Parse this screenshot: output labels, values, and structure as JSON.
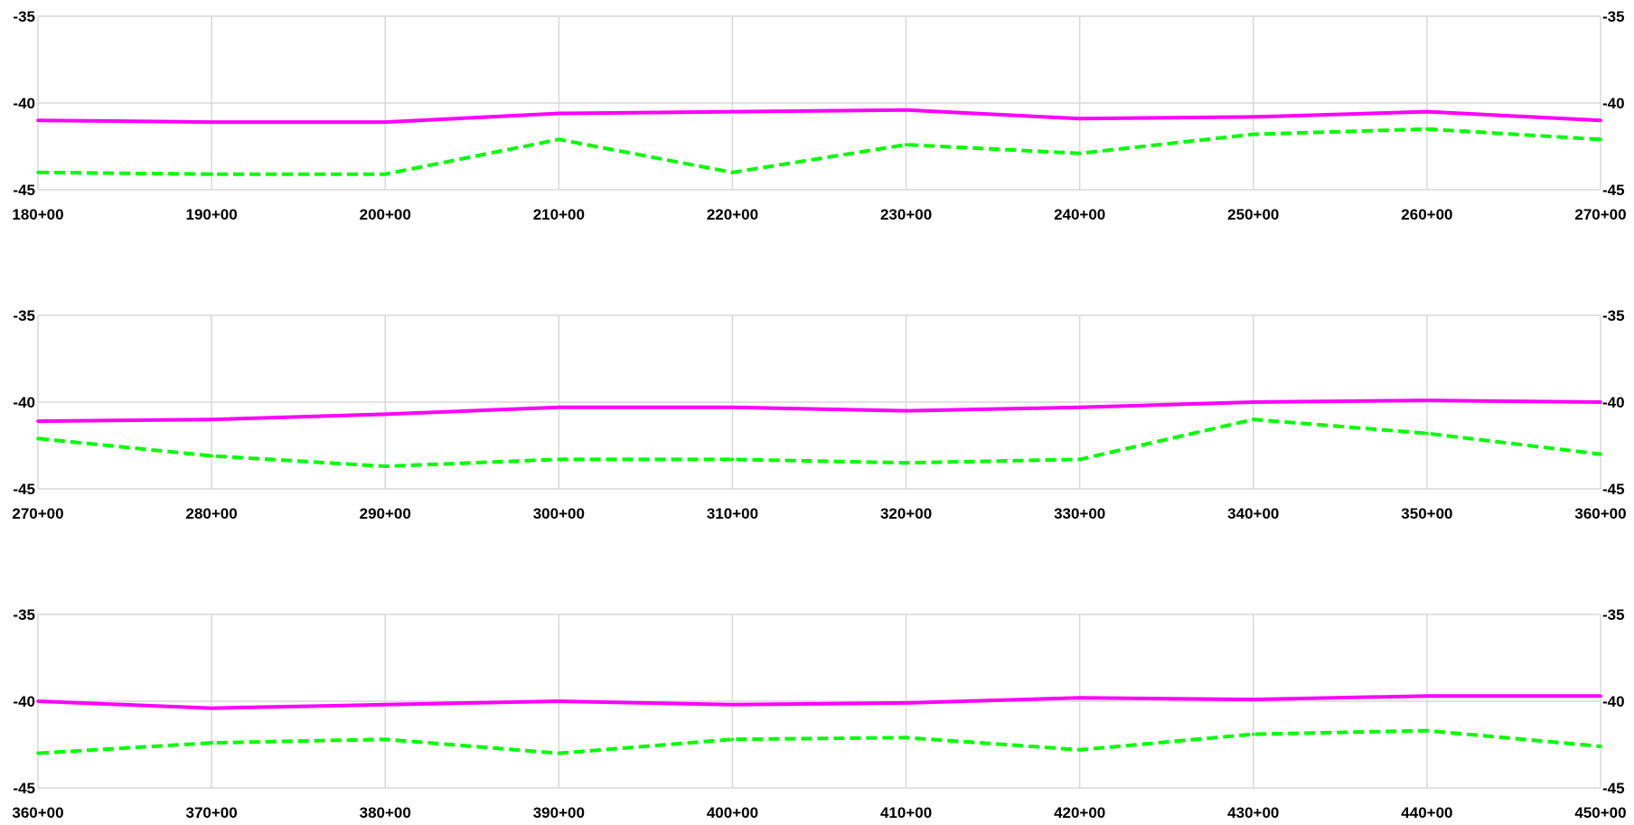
{
  "chart_data": [
    {
      "type": "line",
      "x": [
        180,
        190,
        200,
        210,
        220,
        230,
        240,
        250,
        260,
        270
      ],
      "x_tick_labels": [
        "180+00",
        "190+00",
        "200+00",
        "210+00",
        "220+00",
        "230+00",
        "240+00",
        "250+00",
        "260+00",
        "270+00"
      ],
      "xlim": [
        180,
        270
      ],
      "ylim": [
        -45,
        -35
      ],
      "y_ticks": [
        "-35",
        "-40",
        "-45"
      ],
      "grid": true,
      "series": [
        {
          "color": "#ff00ff",
          "style": "solid",
          "x": [
            180,
            190,
            200,
            210,
            220,
            230,
            240,
            250,
            260,
            270
          ],
          "values": [
            -41.0,
            -41.1,
            -41.1,
            -40.6,
            -40.5,
            -40.4,
            -40.9,
            -40.8,
            -40.5,
            -41.0
          ]
        },
        {
          "color": "#00ff00",
          "style": "dashed",
          "x": [
            180,
            190,
            200,
            210,
            220,
            230,
            240,
            250,
            260,
            270
          ],
          "values": [
            -44.0,
            -44.1,
            -44.1,
            -42.1,
            -44.0,
            -42.4,
            -42.9,
            -41.8,
            -41.5,
            -42.1
          ]
        }
      ]
    },
    {
      "type": "line",
      "x": [
        270,
        280,
        290,
        300,
        310,
        320,
        330,
        340,
        350,
        360
      ],
      "x_tick_labels": [
        "270+00",
        "280+00",
        "290+00",
        "300+00",
        "310+00",
        "320+00",
        "330+00",
        "340+00",
        "350+00",
        "360+00"
      ],
      "xlim": [
        270,
        360
      ],
      "ylim": [
        -45,
        -35
      ],
      "y_ticks": [
        "-35",
        "-40",
        "-45"
      ],
      "grid": true,
      "series": [
        {
          "color": "#ff00ff",
          "style": "solid",
          "x": [
            270,
            280,
            290,
            300,
            310,
            320,
            330,
            340,
            350,
            360
          ],
          "values": [
            -41.1,
            -41.0,
            -40.7,
            -40.3,
            -40.3,
            -40.5,
            -40.3,
            -40.0,
            -39.9,
            -40.0
          ]
        },
        {
          "color": "#00ff00",
          "style": "dashed",
          "x": [
            270,
            280,
            290,
            300,
            310,
            320,
            330,
            340,
            350,
            360
          ],
          "values": [
            -42.1,
            -43.1,
            -43.7,
            -43.3,
            -43.3,
            -43.5,
            -43.3,
            -41.0,
            -41.8,
            -43.0
          ]
        }
      ]
    },
    {
      "type": "line",
      "x": [
        360,
        370,
        380,
        390,
        400,
        410,
        420,
        430,
        440,
        450
      ],
      "x_tick_labels": [
        "360+00",
        "370+00",
        "380+00",
        "390+00",
        "400+00",
        "410+00",
        "420+00",
        "430+00",
        "440+00",
        "450+00"
      ],
      "xlim": [
        360,
        450
      ],
      "ylim": [
        -45,
        -35
      ],
      "y_ticks": [
        "-35",
        "-40",
        "-45"
      ],
      "grid": true,
      "series": [
        {
          "color": "#ff00ff",
          "style": "solid",
          "x": [
            360,
            370,
            380,
            390,
            400,
            410,
            420,
            430,
            440,
            450
          ],
          "values": [
            -40.0,
            -40.4,
            -40.2,
            -40.0,
            -40.2,
            -40.1,
            -39.8,
            -39.9,
            -39.7,
            -39.7
          ]
        },
        {
          "color": "#00ff00",
          "style": "dashed",
          "x": [
            360,
            370,
            380,
            390,
            400,
            410,
            420,
            430,
            440,
            450
          ],
          "values": [
            -43.0,
            -42.4,
            -42.2,
            -43.0,
            -42.2,
            -42.1,
            -42.8,
            -41.9,
            -41.7,
            -42.6
          ]
        }
      ]
    }
  ]
}
